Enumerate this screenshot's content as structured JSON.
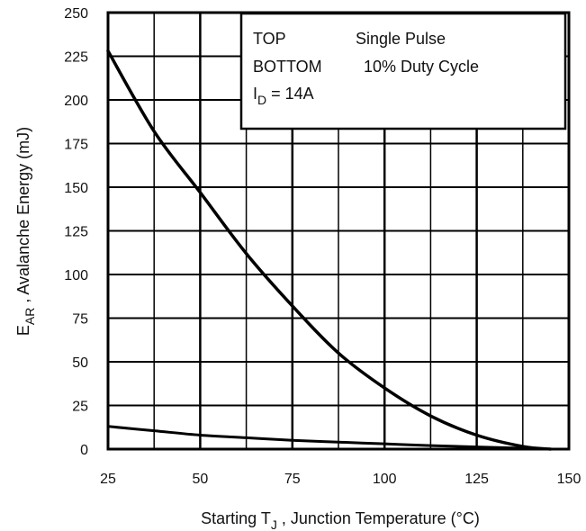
{
  "chart_data": {
    "type": "line",
    "title": "",
    "xlabel": {
      "prefix": "Starting T",
      "sub": "J",
      "suffix": " , Junction Temperature (°C)"
    },
    "ylabel": {
      "prefix": "E",
      "sub": "AR",
      "suffix": " , Avalanche Energy (mJ)"
    },
    "xlim": [
      25,
      150
    ],
    "ylim": [
      0,
      250
    ],
    "x_ticks": [
      25,
      50,
      75,
      100,
      125,
      150
    ],
    "y_ticks": [
      0,
      25,
      50,
      75,
      100,
      125,
      150,
      175,
      200,
      225,
      250
    ],
    "grid": true,
    "legend": {
      "placement": "top-right",
      "row1_key": "TOP",
      "row1_value": "Single Pulse",
      "row2_key": "BOTTOM",
      "row2_value": "10% Duty Cycle",
      "row3_prefix": "I",
      "row3_sub": "D",
      "row3_suffix": " = 14A"
    },
    "series": [
      {
        "name": "Single Pulse",
        "x": [
          25,
          37.5,
          50,
          62.5,
          75,
          87.5,
          100,
          112.5,
          125,
          137.5,
          145
        ],
        "y": [
          228,
          182,
          147,
          112,
          82,
          55,
          35,
          19,
          8,
          1.5,
          0
        ]
      },
      {
        "name": "10% Duty Cycle",
        "x": [
          25,
          37.5,
          50,
          62.5,
          75,
          87.5,
          100,
          112.5,
          125,
          137.5,
          145
        ],
        "y": [
          13,
          10.5,
          8,
          6.5,
          5,
          4,
          3,
          2,
          1.2,
          0.5,
          0
        ]
      }
    ]
  }
}
